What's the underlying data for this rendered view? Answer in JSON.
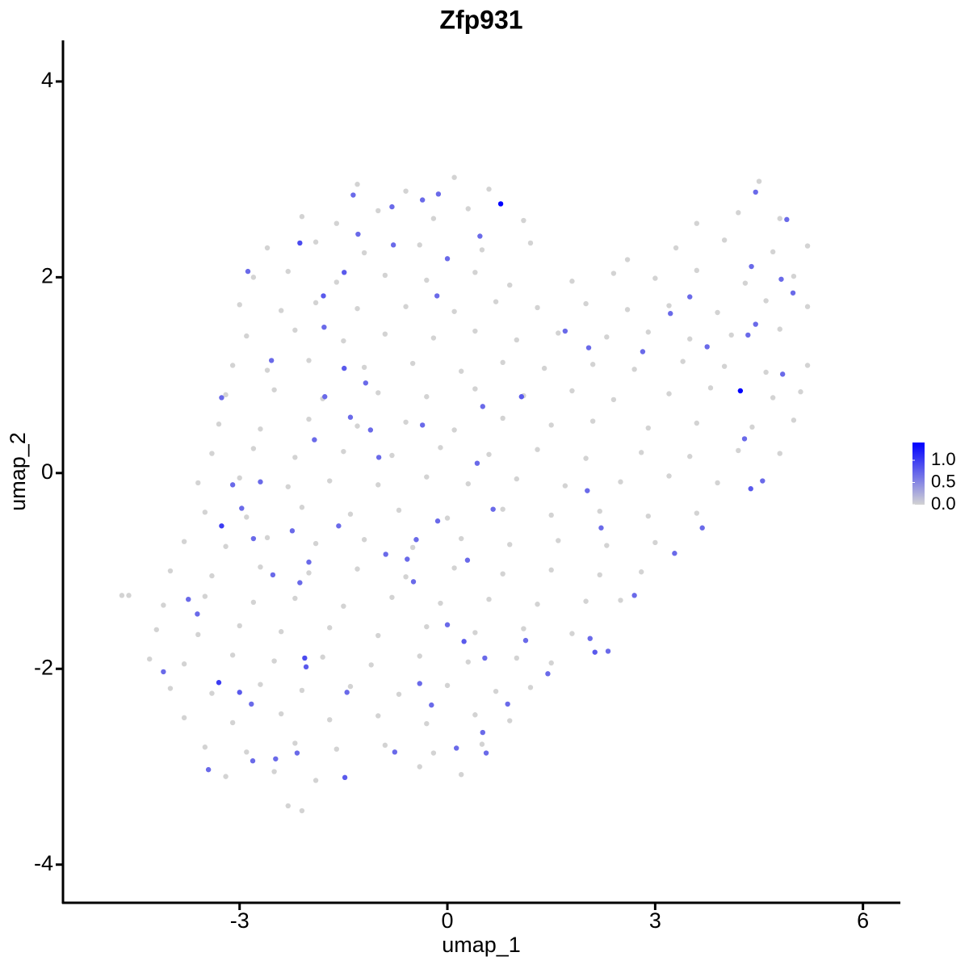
{
  "chart_data": {
    "type": "scatter",
    "title": "Zfp931",
    "x_label": "umap_1",
    "y_label": "umap_2",
    "xlim": [
      -5.55,
      6.54
    ],
    "ylim": [
      -4.39,
      4.42
    ],
    "xticks": [
      -3,
      0,
      3,
      6
    ],
    "yticks": [
      -4,
      -2,
      0,
      2,
      4
    ],
    "color_low": "#d3d3d3",
    "color_high": "#0000ff",
    "colorlim": [
      0,
      1.4
    ],
    "colorticks": [
      {
        "value": 0,
        "label": "0.0"
      },
      {
        "value": 0.5,
        "label": "0.5"
      },
      {
        "value": 1,
        "label": "1.0"
      }
    ],
    "series": [
      {
        "color": "#d3d3d3",
        "x": [
          -1.3,
          -0.6,
          0.1,
          0.6,
          4.5,
          -2.1,
          -1.6,
          -1.0,
          -0.2,
          0.3,
          1.1,
          3.6,
          4.2,
          4.8,
          -2.6,
          -1.9,
          -1.2,
          -0.4,
          0.5,
          1.2,
          2.6,
          3.3,
          4.0,
          4.7,
          5.2,
          -2.8,
          -2.3,
          -1.6,
          -0.9,
          -0.3,
          0.4,
          0.9,
          1.8,
          2.4,
          3.0,
          3.6,
          4.3,
          5.0,
          -3.0,
          -2.4,
          -1.9,
          -1.3,
          -0.6,
          0.1,
          0.7,
          1.3,
          2.0,
          2.6,
          3.2,
          3.9,
          4.6,
          5.2,
          -2.9,
          -2.2,
          -1.5,
          -0.9,
          -0.2,
          0.4,
          1.0,
          1.6,
          2.3,
          2.9,
          3.5,
          4.1,
          4.8,
          -3.1,
          -2.6,
          -2.0,
          -1.2,
          -0.5,
          0.2,
          0.8,
          1.4,
          2.1,
          2.7,
          3.4,
          4.0,
          4.6,
          5.2,
          -3.2,
          -2.5,
          -1.8,
          -1.0,
          -0.3,
          0.4,
          1.1,
          1.8,
          2.4,
          3.2,
          3.8,
          4.7,
          5.1,
          -3.3,
          -2.7,
          -2.0,
          -1.3,
          -0.6,
          0.1,
          0.8,
          1.5,
          2.1,
          2.9,
          3.6,
          4.4,
          5.0,
          -3.4,
          -2.8,
          -2.2,
          -1.5,
          -0.8,
          -0.1,
          0.6,
          1.3,
          2.0,
          2.8,
          3.5,
          4.2,
          4.8,
          -3.6,
          -3.0,
          -2.3,
          -1.7,
          -1.0,
          -0.3,
          0.3,
          1.0,
          1.7,
          2.5,
          3.2,
          3.9,
          -3.5,
          -2.9,
          -2.1,
          -1.4,
          -0.7,
          0.0,
          0.8,
          1.5,
          2.2,
          2.9,
          3.6,
          -3.8,
          -3.2,
          -2.6,
          -1.9,
          -1.2,
          -0.5,
          0.2,
          0.9,
          1.6,
          2.3,
          3.0,
          -4.0,
          -3.4,
          -2.7,
          -2.0,
          -1.3,
          -0.6,
          0.1,
          0.8,
          1.5,
          2.2,
          2.8,
          -4.6,
          -4.1,
          -3.5,
          -2.8,
          -2.2,
          -1.5,
          -0.8,
          -0.1,
          0.6,
          1.3,
          2.0,
          2.5,
          -4.2,
          -3.6,
          -3.0,
          -2.4,
          -1.7,
          -1.0,
          -0.3,
          0.4,
          1.1,
          1.8,
          -4.3,
          -3.8,
          -3.1,
          -2.5,
          -1.8,
          -1.1,
          -0.4,
          0.3,
          1.0,
          1.5,
          -4.0,
          -3.4,
          -2.7,
          -2.1,
          -1.4,
          -0.7,
          0.0,
          0.7,
          1.2,
          -3.8,
          -3.1,
          -2.4,
          -1.7,
          -1.0,
          -0.3,
          0.4,
          0.9,
          -3.5,
          -2.9,
          -2.2,
          -1.6,
          -0.9,
          -0.2,
          0.5,
          -3.2,
          -2.5,
          -1.9,
          -0.4,
          0.2,
          -2.3,
          -2.1,
          -4.7
        ],
        "y": [
          2.95,
          2.88,
          3.02,
          2.9,
          2.98,
          2.62,
          2.55,
          2.68,
          2.6,
          2.7,
          2.58,
          2.55,
          2.66,
          2.6,
          2.3,
          2.36,
          2.25,
          2.33,
          2.28,
          2.35,
          2.18,
          2.3,
          2.38,
          2.26,
          2.32,
          2.0,
          2.06,
          1.95,
          2.02,
          1.97,
          2.05,
          1.92,
          1.96,
          2.04,
          1.99,
          2.07,
          1.94,
          2.01,
          1.72,
          1.66,
          1.74,
          1.68,
          1.7,
          1.65,
          1.75,
          1.69,
          1.73,
          1.67,
          1.71,
          1.64,
          1.76,
          1.7,
          1.4,
          1.46,
          1.35,
          1.42,
          1.38,
          1.45,
          1.36,
          1.43,
          1.39,
          1.44,
          1.37,
          1.41,
          1.47,
          1.1,
          1.05,
          1.15,
          1.08,
          1.12,
          1.04,
          1.13,
          1.07,
          1.11,
          1.06,
          1.14,
          1.09,
          1.03,
          1.1,
          0.8,
          0.85,
          0.76,
          0.82,
          0.78,
          0.86,
          0.79,
          0.84,
          0.75,
          0.81,
          0.87,
          0.77,
          0.83,
          0.5,
          0.45,
          0.55,
          0.48,
          0.52,
          0.44,
          0.56,
          0.49,
          0.53,
          0.46,
          0.51,
          0.47,
          0.54,
          0.2,
          0.25,
          0.16,
          0.22,
          0.18,
          0.26,
          0.19,
          0.24,
          0.15,
          0.21,
          0.17,
          0.23,
          0.2,
          -0.1,
          -0.05,
          -0.14,
          -0.08,
          -0.12,
          -0.04,
          -0.11,
          -0.06,
          -0.13,
          -0.09,
          -0.03,
          -0.1,
          -0.4,
          -0.45,
          -0.35,
          -0.42,
          -0.38,
          -0.46,
          -0.37,
          -0.43,
          -0.39,
          -0.44,
          -0.41,
          -0.7,
          -0.75,
          -0.66,
          -0.72,
          -0.68,
          -0.76,
          -0.67,
          -0.73,
          -0.69,
          -0.74,
          -0.71,
          -1.0,
          -1.05,
          -0.96,
          -1.02,
          -0.98,
          -1.06,
          -0.97,
          -1.03,
          -0.99,
          -1.04,
          -1.01,
          -1.25,
          -1.35,
          -1.26,
          -1.32,
          -1.28,
          -1.36,
          -1.27,
          -1.33,
          -1.29,
          -1.34,
          -1.31,
          -1.3,
          -1.6,
          -1.65,
          -1.56,
          -1.62,
          -1.58,
          -1.66,
          -1.57,
          -1.63,
          -1.59,
          -1.64,
          -1.9,
          -1.95,
          -1.86,
          -1.92,
          -1.88,
          -1.96,
          -1.87,
          -1.93,
          -1.89,
          -1.94,
          -2.2,
          -2.25,
          -2.16,
          -2.22,
          -2.18,
          -2.26,
          -2.17,
          -2.23,
          -2.19,
          -2.5,
          -2.55,
          -2.46,
          -2.52,
          -2.48,
          -2.56,
          -2.47,
          -2.53,
          -2.8,
          -2.85,
          -2.76,
          -2.82,
          -2.78,
          -2.86,
          -2.77,
          -3.1,
          -3.05,
          -3.14,
          -3.0,
          -3.08,
          -3.4,
          -3.45,
          -1.25
        ]
      },
      {
        "x": [
          0.77,
          4.23,
          -3.26,
          -3.26,
          -2.13,
          -1.49,
          -1.79,
          -2.88,
          -2.54,
          -1.49,
          -0.8,
          -0.36,
          -0.13,
          0.47,
          0,
          -0.78,
          -0.15,
          1.07,
          2.04,
          1.7,
          3.22,
          2.82,
          3.75,
          4.45,
          4.34,
          4.84,
          4.82,
          4.9,
          4.45,
          4.39,
          4.99,
          3.5,
          0.51,
          -0.36,
          -1.92,
          -1.4,
          -0.99,
          -0.14,
          -0.45,
          -0.89,
          -1.57,
          -2.24,
          -2.8,
          -2.97,
          -2.7,
          -3.1,
          -2.52,
          -2.13,
          -2.0,
          -3.61,
          -3.74,
          -4.1,
          -3.3,
          -3.0,
          -2.83,
          -2.06,
          -2.04,
          -1.45,
          -1.48,
          -2.48,
          -2.81,
          -3.45,
          -2.17,
          -0.76,
          -0.4,
          -0.23,
          0.13,
          0.56,
          0.51,
          0.87,
          0.54,
          0.24,
          0,
          1.13,
          1.45,
          2.13,
          2.32,
          2.06,
          2.02,
          2.22,
          2.7,
          3.28,
          3.68,
          4.55,
          4.38,
          4.29,
          0.43,
          0.66,
          -1.18,
          -1.77,
          -0.58,
          0.29,
          -0.49,
          -1.11,
          -1.78,
          -1.29,
          -1.36
        ],
        "y": [
          2.75,
          0.84,
          -0.54,
          0.77,
          2.35,
          2.05,
          1.81,
          2.06,
          1.15,
          1.07,
          2.72,
          2.79,
          2.85,
          2.42,
          2.19,
          2.33,
          1.81,
          0.78,
          1.28,
          1.45,
          1.63,
          1.24,
          1.29,
          1.52,
          1.41,
          1.01,
          1.98,
          2.59,
          2.87,
          2.11,
          1.84,
          1.8,
          0.68,
          0.49,
          0.34,
          0.57,
          0.16,
          -0.49,
          -0.68,
          -0.83,
          -0.54,
          -0.59,
          -0.67,
          -0.36,
          -0.09,
          -0.12,
          -1.04,
          -1.12,
          -0.91,
          -1.44,
          -1.29,
          -2.03,
          -2.14,
          -2.24,
          -2.36,
          -1.89,
          -1.98,
          -2.24,
          -3.11,
          -2.92,
          -2.94,
          -3.03,
          -2.86,
          -2.85,
          -2.15,
          -2.37,
          -2.81,
          -2.86,
          -2.65,
          -2.36,
          -1.89,
          -1.72,
          -1.55,
          -1.71,
          -2.05,
          -1.83,
          -1.82,
          -1.69,
          -0.18,
          -0.56,
          -1.25,
          -0.82,
          -0.56,
          -0.08,
          -0.16,
          0.35,
          0.1,
          -0.37,
          0.92,
          0.78,
          -0.88,
          -0.89,
          -1.11,
          0.44,
          1.49,
          2.44,
          2.84
        ],
        "values": [
          1.4,
          1.4,
          1.0,
          0.7,
          0.9,
          0.8,
          0.8,
          0.7,
          0.7,
          0.8,
          0.7,
          0.7,
          0.7,
          0.7,
          0.7,
          0.7,
          0.7,
          0.8,
          0.7,
          0.7,
          0.7,
          0.7,
          0.7,
          0.7,
          0.7,
          0.7,
          0.7,
          0.7,
          0.7,
          0.7,
          0.7,
          0.7,
          0.7,
          0.7,
          0.7,
          0.7,
          0.7,
          0.7,
          0.7,
          0.7,
          0.7,
          0.7,
          0.7,
          0.7,
          0.7,
          0.7,
          0.7,
          0.7,
          0.7,
          0.7,
          0.7,
          0.7,
          1.0,
          0.8,
          0.7,
          0.9,
          0.8,
          0.7,
          0.8,
          0.7,
          0.7,
          0.7,
          0.7,
          0.7,
          0.7,
          0.7,
          0.7,
          0.7,
          0.7,
          0.7,
          0.7,
          0.8,
          0.7,
          0.7,
          0.7,
          0.8,
          0.7,
          0.7,
          0.7,
          0.7,
          0.7,
          0.7,
          0.7,
          0.7,
          0.8,
          0.7,
          0.7,
          0.7,
          0.7,
          0.7,
          0.7,
          0.7,
          0.7,
          0.7,
          0.7,
          0.7,
          0.7
        ]
      }
    ]
  }
}
